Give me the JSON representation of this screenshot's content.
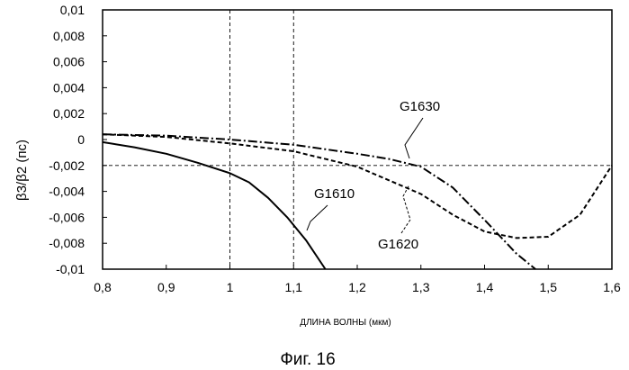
{
  "chart_data": {
    "type": "line",
    "title": "",
    "caption": "Фиг. 16",
    "xlabel": "ДЛИНА ВОЛНЫ (мкм)",
    "ylabel": "β3/β2 (пс)",
    "xlim": [
      0.8,
      1.6
    ],
    "ylim": [
      -0.01,
      0.01
    ],
    "x_ticks": [
      "0,8",
      "0,9",
      "1",
      "1,1",
      "1,2",
      "1,3",
      "1,4",
      "1,5",
      "1,6"
    ],
    "y_ticks": [
      "0,01",
      "0,008",
      "0,006",
      "0,004",
      "0,002",
      "0",
      "-0,002",
      "-0,004",
      "-0,006",
      "-0,008",
      "-0,01"
    ],
    "grid": false,
    "reference_lines": {
      "x": [
        1.0,
        1.1
      ],
      "y": [
        -0.002
      ]
    },
    "series": [
      {
        "name": "G1610",
        "style": "solid",
        "x": [
          0.8,
          0.85,
          0.9,
          0.95,
          1.0,
          1.03,
          1.06,
          1.09,
          1.12,
          1.15
        ],
        "y": [
          -0.0002,
          -0.0006,
          -0.0011,
          -0.0018,
          -0.0026,
          -0.0033,
          -0.0045,
          -0.006,
          -0.0078,
          -0.01
        ]
      },
      {
        "name": "G1620",
        "style": "dashed",
        "x": [
          0.8,
          0.9,
          1.0,
          1.1,
          1.2,
          1.3,
          1.35,
          1.4,
          1.45,
          1.5,
          1.55,
          1.6
        ],
        "y": [
          0.0004,
          0.0002,
          -0.0003,
          -0.0009,
          -0.0021,
          -0.0042,
          -0.0058,
          -0.0071,
          -0.0076,
          -0.0075,
          -0.0058,
          -0.002
        ]
      },
      {
        "name": "G1630",
        "style": "dashdot",
        "x": [
          0.8,
          0.9,
          1.0,
          1.1,
          1.2,
          1.25,
          1.3,
          1.35,
          1.4,
          1.45,
          1.48
        ],
        "y": [
          0.0004,
          0.0003,
          0.0,
          -0.0004,
          -0.0011,
          -0.0015,
          -0.0021,
          -0.0037,
          -0.0062,
          -0.0088,
          -0.01
        ]
      }
    ],
    "annotations": [
      "G1630",
      "G1610",
      "G1620"
    ]
  }
}
